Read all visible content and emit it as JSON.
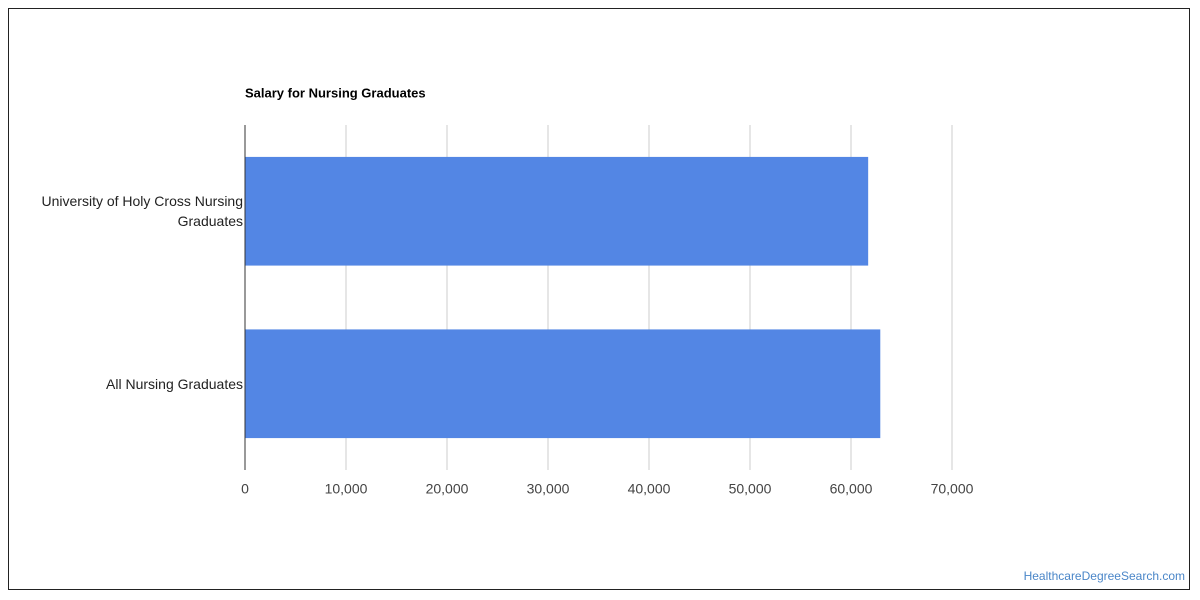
{
  "chart_data": {
    "type": "bar",
    "orientation": "horizontal",
    "title": "Salary for Nursing Graduates",
    "categories": [
      "University of Holy Cross Nursing Graduates",
      "All Nursing Graduates"
    ],
    "values": [
      61700,
      62900
    ],
    "color": "#5386e4",
    "xlim": [
      0,
      70000
    ],
    "xticks": [
      0,
      {
        "value": 10000,
        "label": "10,000"
      },
      {
        "value": 20000,
        "label": "20,000"
      },
      {
        "value": 30000,
        "label": "30,000"
      },
      {
        "value": 40000,
        "label": "40,000"
      },
      {
        "value": 50000,
        "label": "50,000"
      },
      {
        "value": 60000,
        "label": "60,000"
      },
      {
        "value": 70000,
        "label": "70,000"
      }
    ],
    "grid": true
  },
  "footer": "HealthcareDegreeSearch.com"
}
